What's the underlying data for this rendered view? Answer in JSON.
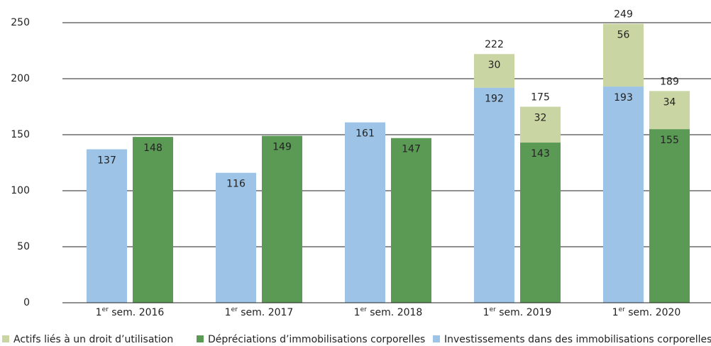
{
  "chart_data": {
    "type": "bar",
    "categories": [
      "1er sem. 2016",
      "1er sem. 2017",
      "1er sem. 2018",
      "1er sem. 2019",
      "1er sem. 2020"
    ],
    "series": [
      {
        "name": "Actifs liés à un droit d’utilisation",
        "color": "#c9d5a3",
        "values": [
          [
            null,
            null
          ],
          [
            null,
            null
          ],
          [
            null,
            null
          ],
          [
            30,
            32
          ],
          [
            56,
            34
          ]
        ]
      },
      {
        "name": "Dépréciations d’immobilisations corporelles",
        "color": "#5a9a55",
        "bar": 1,
        "values": [
          148,
          149,
          147,
          143,
          155
        ]
      },
      {
        "name": "Investissements dans des immobilisations corporelles",
        "color": "#9dc3e6",
        "bar": 0,
        "values": [
          137,
          116,
          161,
          192,
          193
        ]
      }
    ],
    "totals": [
      [
        null,
        null
      ],
      [
        null,
        null
      ],
      [
        null,
        null
      ],
      [
        222,
        175
      ],
      [
        249,
        189
      ]
    ],
    "ylim": [
      0,
      250
    ],
    "yticks": [
      0,
      50,
      100,
      150,
      200,
      250
    ],
    "grid": true,
    "legend": "bottom"
  }
}
